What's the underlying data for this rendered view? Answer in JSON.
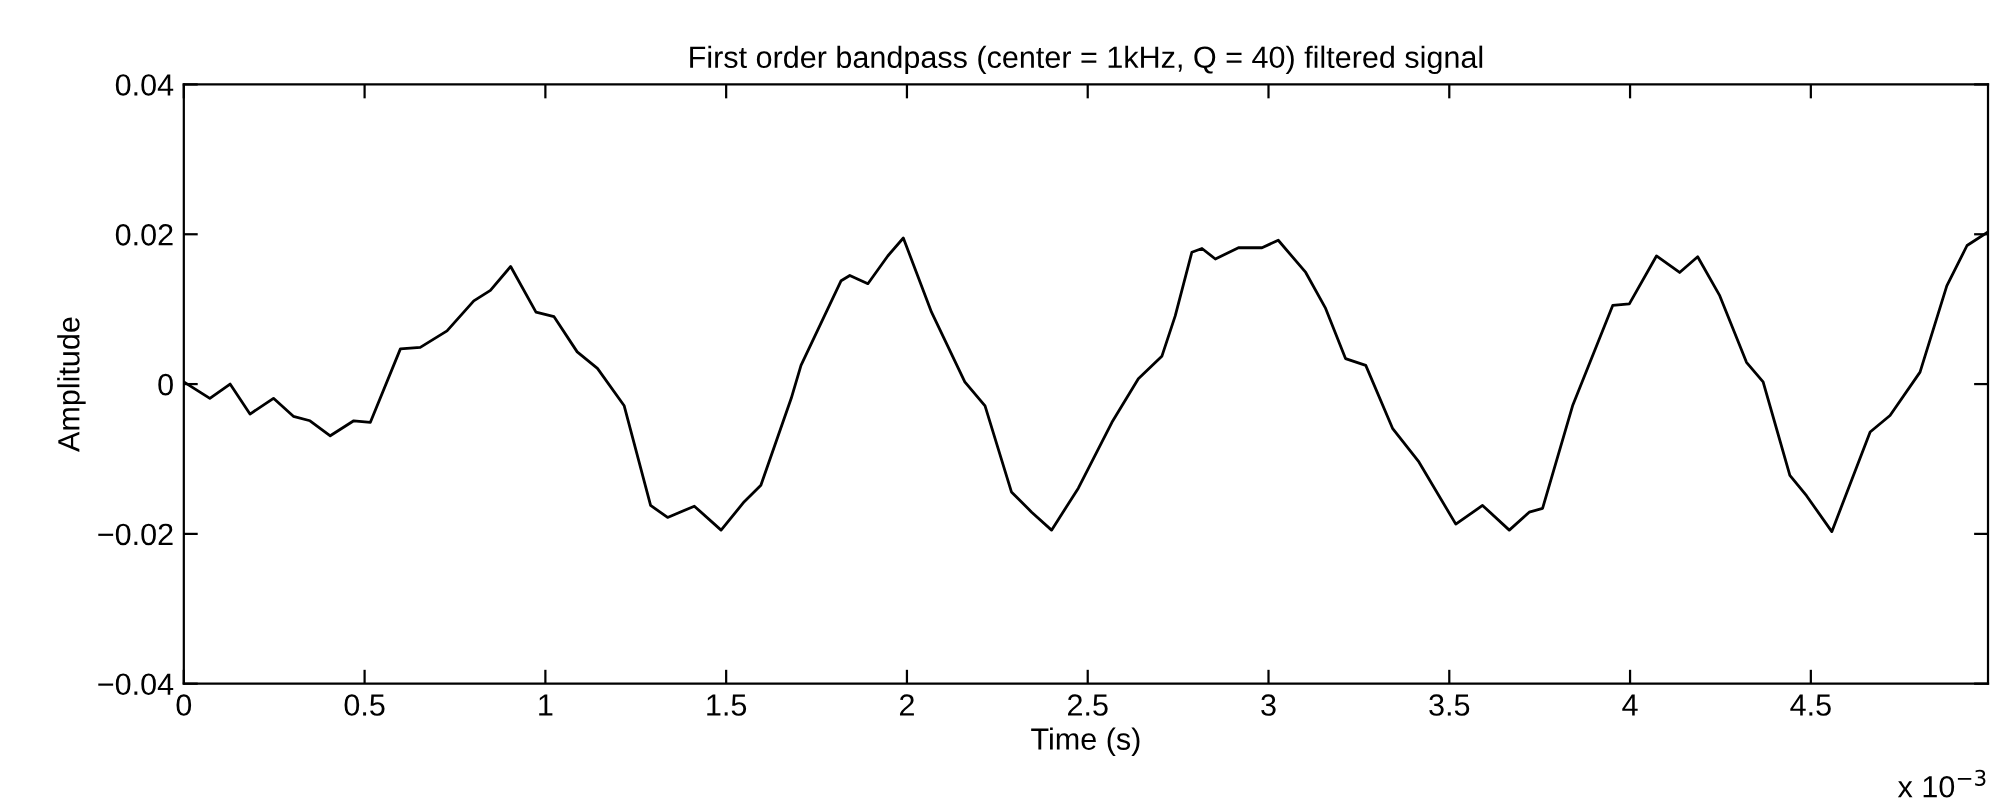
{
  "chart_data": {
    "type": "line",
    "title": "First order bandpass (center = 1kHz, Q = 40) filtered signal",
    "xlabel": "Time (s)",
    "ylabel": "Amplitude",
    "annotations": [
      "x 10$^{−3}$"
    ],
    "xlim": [
      0,
      4.99
    ],
    "ylim": [
      -0.04,
      0.04
    ],
    "xticks": [
      0,
      0.5,
      1,
      1.5,
      2,
      2.5,
      3,
      3.5,
      4,
      4.5
    ],
    "yticks": [
      {
        "value": -0.04,
        "label": "−0.04"
      },
      {
        "value": -0.02,
        "label": "−0.02"
      },
      0,
      0.02,
      0.04
    ],
    "grid": false,
    "legend": false,
    "line_style": "solid",
    "marker": "none",
    "series": [
      {
        "color": "#000000",
        "x": [
          0,
          0.072,
          0.128,
          0.183,
          0.248,
          0.303,
          0.349,
          0.405,
          0.47,
          0.516,
          0.599,
          0.654,
          0.728,
          0.802,
          0.848,
          0.904,
          0.974,
          1.024,
          1.088,
          1.144,
          1.218,
          1.291,
          1.338,
          1.412,
          1.486,
          1.55,
          1.596,
          1.68,
          1.707,
          1.818,
          1.842,
          1.892,
          1.947,
          1.99,
          2.068,
          2.16,
          2.216,
          2.289,
          2.345,
          2.4,
          2.474,
          2.567,
          2.64,
          2.705,
          2.742,
          2.788,
          2.816,
          2.853,
          2.917,
          2.982,
          3.027,
          3.103,
          3.158,
          3.213,
          3.269,
          3.343,
          3.416,
          3.518,
          3.592,
          3.666,
          3.721,
          3.758,
          3.841,
          3.952,
          3.998,
          4.073,
          4.137,
          4.187,
          4.248,
          4.322,
          4.368,
          4.442,
          4.488,
          4.558,
          4.664,
          4.719,
          4.802,
          4.876,
          4.932,
          4.99
        ],
        "values": [
          0.0003,
          -0.0019,
          0.0,
          -0.004,
          -0.0019,
          -0.0043,
          -0.0049,
          -0.0069,
          -0.0049,
          -0.0051,
          0.0047,
          0.0049,
          0.0071,
          0.0111,
          0.0125,
          0.0157,
          0.0096,
          0.009,
          0.0043,
          0.0021,
          -0.0029,
          -0.0162,
          -0.0178,
          -0.0163,
          -0.0195,
          -0.0157,
          -0.0135,
          -0.0019,
          0.0025,
          0.0138,
          0.0145,
          0.0134,
          0.0171,
          0.0195,
          0.0096,
          0.0003,
          -0.0029,
          -0.0144,
          -0.0171,
          -0.0195,
          -0.0139,
          -0.0051,
          0.0007,
          0.0037,
          0.0091,
          0.0176,
          0.0181,
          0.0167,
          0.0182,
          0.0182,
          0.0192,
          0.0149,
          0.0101,
          0.0034,
          0.0025,
          -0.0059,
          -0.0104,
          -0.0187,
          -0.0162,
          -0.0195,
          -0.0171,
          -0.0166,
          -0.0029,
          0.0105,
          0.0107,
          0.0171,
          0.0149,
          0.017,
          0.0118,
          0.0029,
          0.0003,
          -0.0122,
          -0.0149,
          -0.0197,
          -0.0064,
          -0.0042,
          0.0016,
          0.0131,
          0.0185,
          0.0203
        ]
      }
    ]
  }
}
